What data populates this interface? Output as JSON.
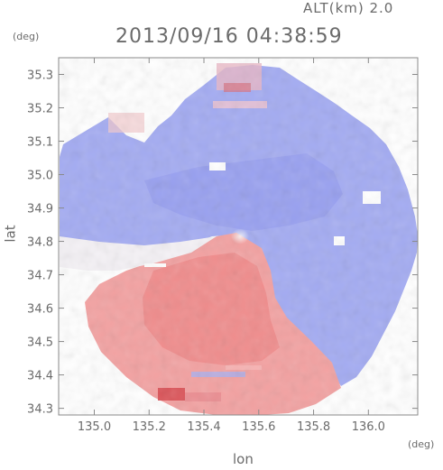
{
  "chart_data": {
    "type": "heatmap",
    "header_text": "ALT(km) 2.0",
    "title": "2013/09/16 04:38:59",
    "xlabel": "lon",
    "ylabel": "lat",
    "x_unit": "(deg)",
    "y_unit": "(deg)",
    "xlim": [
      134.87,
      136.18
    ],
    "ylim": [
      34.28,
      35.35
    ],
    "x_ticks": [
      135.0,
      135.2,
      135.4,
      135.6,
      135.8,
      136.0
    ],
    "x_tick_labels": [
      "135.0",
      "135.2",
      "135.4",
      "135.6",
      "135.8",
      "136.0"
    ],
    "y_ticks": [
      34.3,
      34.4,
      34.5,
      34.6,
      34.7,
      34.8,
      34.9,
      35.0,
      35.1,
      35.2,
      35.3
    ],
    "y_tick_labels": [
      "34.3",
      "34.4",
      "34.5",
      "34.6",
      "34.7",
      "34.8",
      "34.9",
      "35.0",
      "35.1",
      "35.2",
      "35.3"
    ],
    "radar_center": {
      "lon": 135.51,
      "lat": 34.83
    },
    "colors": {
      "negative": "#8f98ef",
      "positive": "#f08c8c",
      "neutral": "#ffffff",
      "axis": "#8a8a8a"
    },
    "grid": false,
    "legend": "none"
  }
}
